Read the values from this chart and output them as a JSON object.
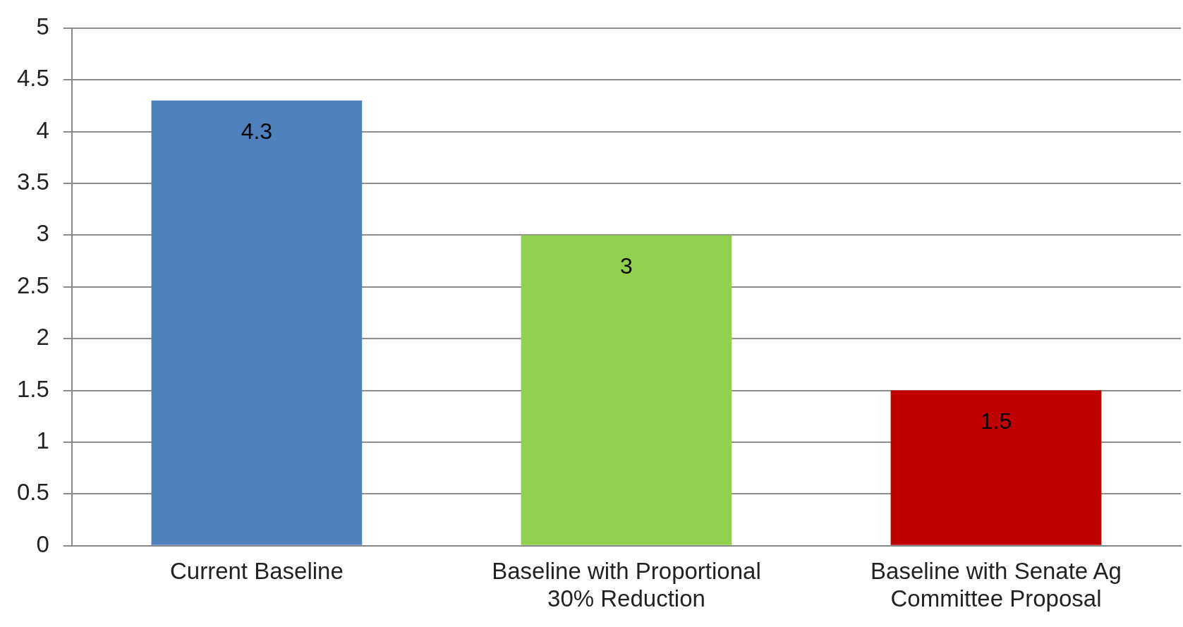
{
  "chart_data": {
    "type": "bar",
    "categories": [
      "Current Baseline",
      "Baseline with Proportional 30% Reduction",
      "Baseline with Senate Ag Committee Proposal"
    ],
    "values": [
      4.3,
      3,
      1.5
    ],
    "colors": [
      "#4f81bd",
      "#92d050",
      "#c00000"
    ],
    "ylim": [
      0,
      5
    ],
    "yticks": [
      0,
      0.5,
      1,
      1.5,
      2,
      2.5,
      3,
      3.5,
      4,
      4.5,
      5
    ],
    "grid": "y",
    "legend": false,
    "data_labels": true
  }
}
